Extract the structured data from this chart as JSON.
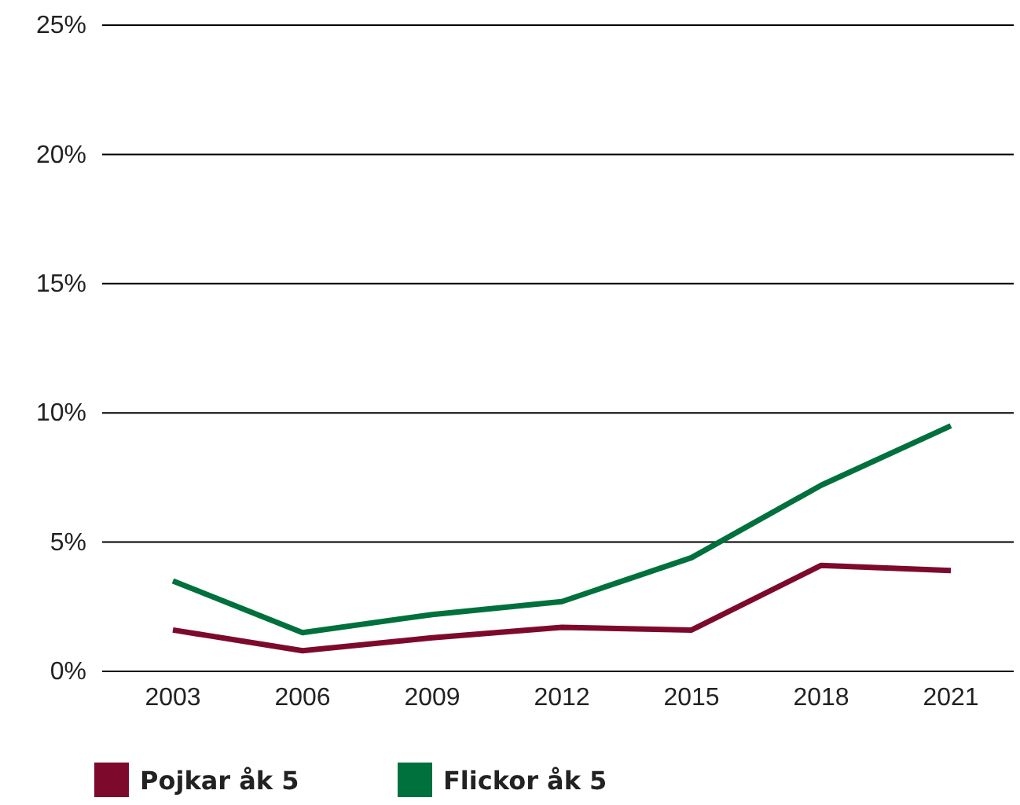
{
  "chart_data": {
    "type": "line",
    "categories": [
      "2003",
      "2006",
      "2009",
      "2012",
      "2015",
      "2018",
      "2021"
    ],
    "series": [
      {
        "name": "Pojkar åk 5",
        "color": "#7d0a2c",
        "values": [
          1.6,
          0.8,
          1.3,
          1.7,
          1.6,
          4.1,
          3.9
        ]
      },
      {
        "name": "Flickor åk 5",
        "color": "#00703c",
        "values": [
          3.5,
          1.5,
          2.2,
          2.7,
          4.4,
          7.2,
          9.5
        ]
      }
    ],
    "ylim": [
      0,
      25
    ],
    "yticks": [
      {
        "value": 0,
        "label": "0%"
      },
      {
        "value": 5,
        "label": "5%"
      },
      {
        "value": 10,
        "label": "10%"
      },
      {
        "value": 15,
        "label": "15%"
      },
      {
        "value": 20,
        "label": "20%"
      },
      {
        "value": 25,
        "label": "25%"
      }
    ],
    "grid": "y",
    "legend": "bottom",
    "marker": "none",
    "line_style": "solid"
  }
}
